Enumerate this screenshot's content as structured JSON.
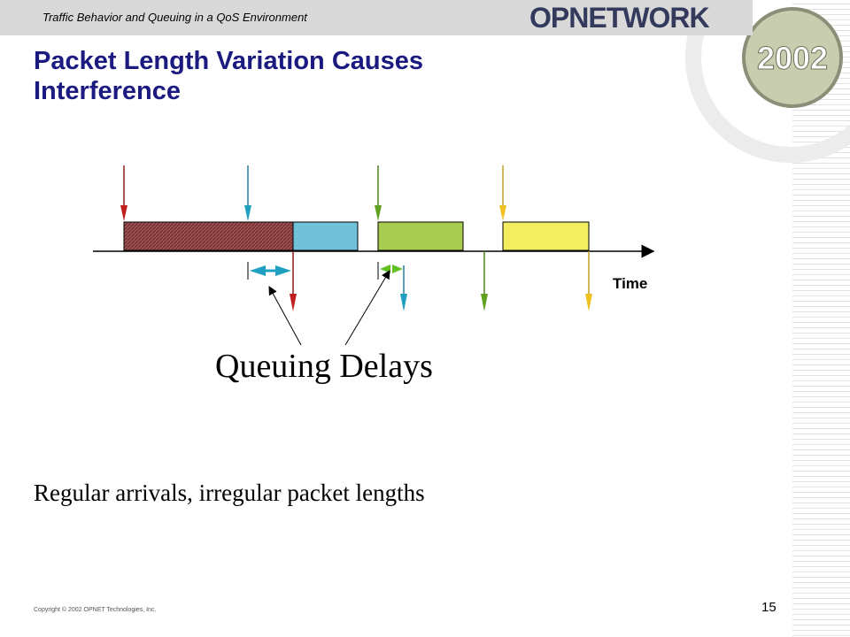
{
  "header": {
    "title": "Traffic Behavior and Queuing in a QoS Environment",
    "logo": "OPNETWORK",
    "year": "2002"
  },
  "slide": {
    "title": "Packet Length Variation Causes Interference",
    "body": "Regular arrivals, irregular packet lengths"
  },
  "diagram": {
    "axis_label": "Time",
    "annotation": "Queuing Delays"
  },
  "footer": {
    "copyright": "Copyright © 2002 OPNET Technologies, Inc.",
    "page_number": "15"
  }
}
